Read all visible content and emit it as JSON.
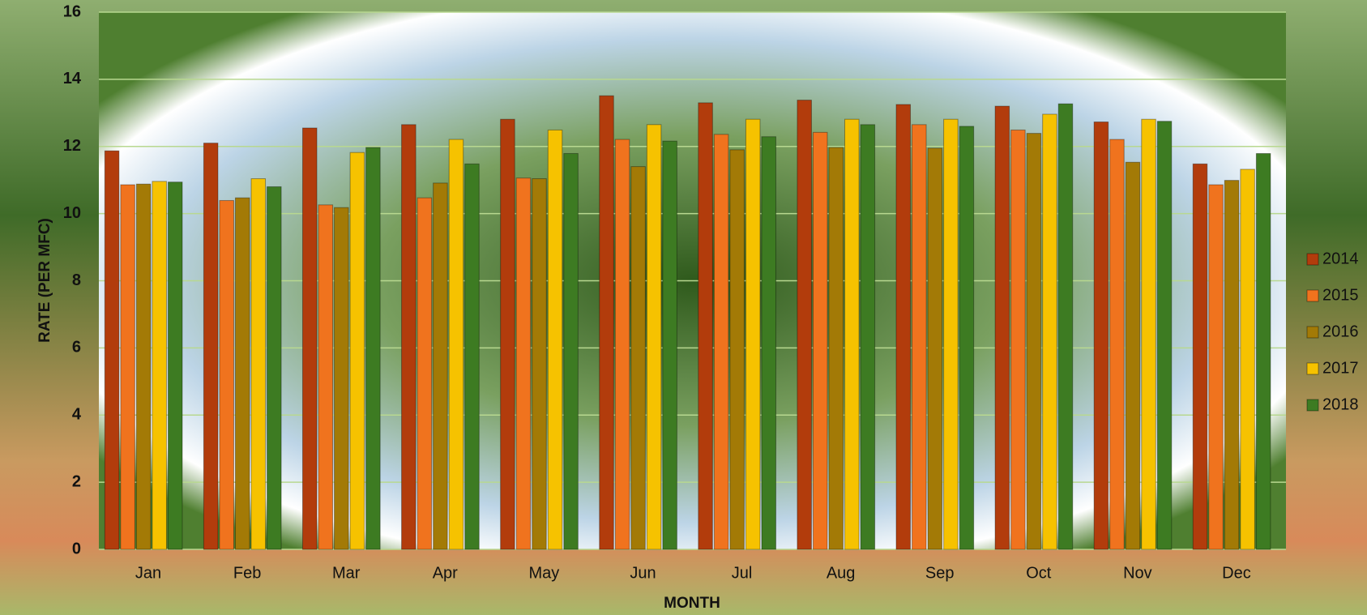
{
  "chart_data": {
    "type": "bar",
    "x_label": "MONTH",
    "y_label": "RATE (PER MFC)",
    "categories": [
      "Jan",
      "Feb",
      "Mar",
      "Apr",
      "May",
      "Jun",
      "Jul",
      "Aug",
      "Sep",
      "Oct",
      "Nov",
      "Dec"
    ],
    "series": [
      {
        "name": "2014",
        "color": "#b23c0c",
        "values": [
          11.87,
          12.1,
          12.55,
          12.65,
          12.81,
          13.51,
          13.3,
          13.38,
          13.25,
          13.2,
          12.73,
          11.48
        ]
      },
      {
        "name": "2015",
        "color": "#f0731e",
        "values": [
          10.86,
          10.39,
          10.26,
          10.47,
          11.06,
          12.21,
          12.36,
          12.42,
          12.65,
          12.49,
          12.21,
          10.86
        ]
      },
      {
        "name": "2016",
        "color": "#a37a06",
        "values": [
          10.88,
          10.47,
          10.18,
          10.91,
          11.04,
          11.4,
          11.9,
          11.97,
          11.95,
          12.39,
          11.53,
          10.99
        ]
      },
      {
        "name": "2017",
        "color": "#f6c200",
        "values": [
          10.96,
          11.04,
          11.82,
          12.21,
          12.49,
          12.65,
          12.81,
          12.81,
          12.81,
          12.96,
          12.81,
          11.32
        ]
      },
      {
        "name": "2018",
        "color": "#3d7b22",
        "values": [
          10.94,
          10.8,
          11.97,
          11.48,
          11.79,
          12.16,
          12.29,
          12.65,
          12.6,
          13.27,
          12.75,
          11.79
        ]
      }
    ],
    "ylim": [
      0,
      16
    ],
    "yticks": [
      0,
      2,
      4,
      6,
      8,
      10,
      12,
      14,
      16
    ],
    "grid": true,
    "legend": "right"
  }
}
